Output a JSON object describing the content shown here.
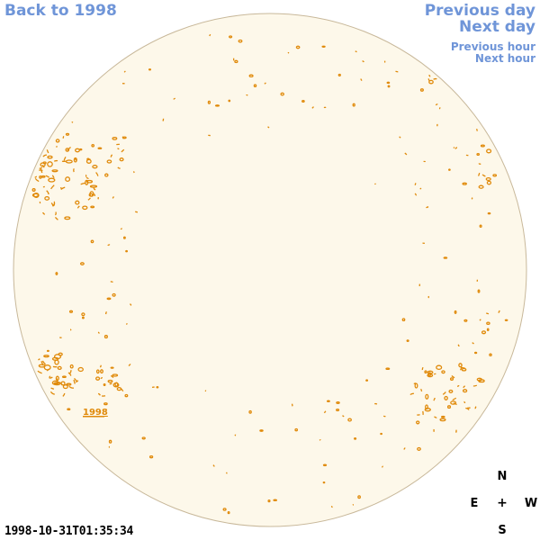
{
  "nav": {
    "back_label": "Back to 1998",
    "prev_day_label": "Previous day",
    "next_day_label": "Next day",
    "prev_hour_label": "Previous hour",
    "next_hour_label": "Next hour"
  },
  "disk": {
    "fill_color": "#fdf8ea",
    "border_color": "#c8b89a",
    "contour_color": "#e08a0a",
    "region_label": "1998"
  },
  "compass": {
    "north": "N",
    "east": "E",
    "center": "+",
    "west": "W",
    "south": "S"
  },
  "timestamp": "1998-10-31T01:35:34"
}
